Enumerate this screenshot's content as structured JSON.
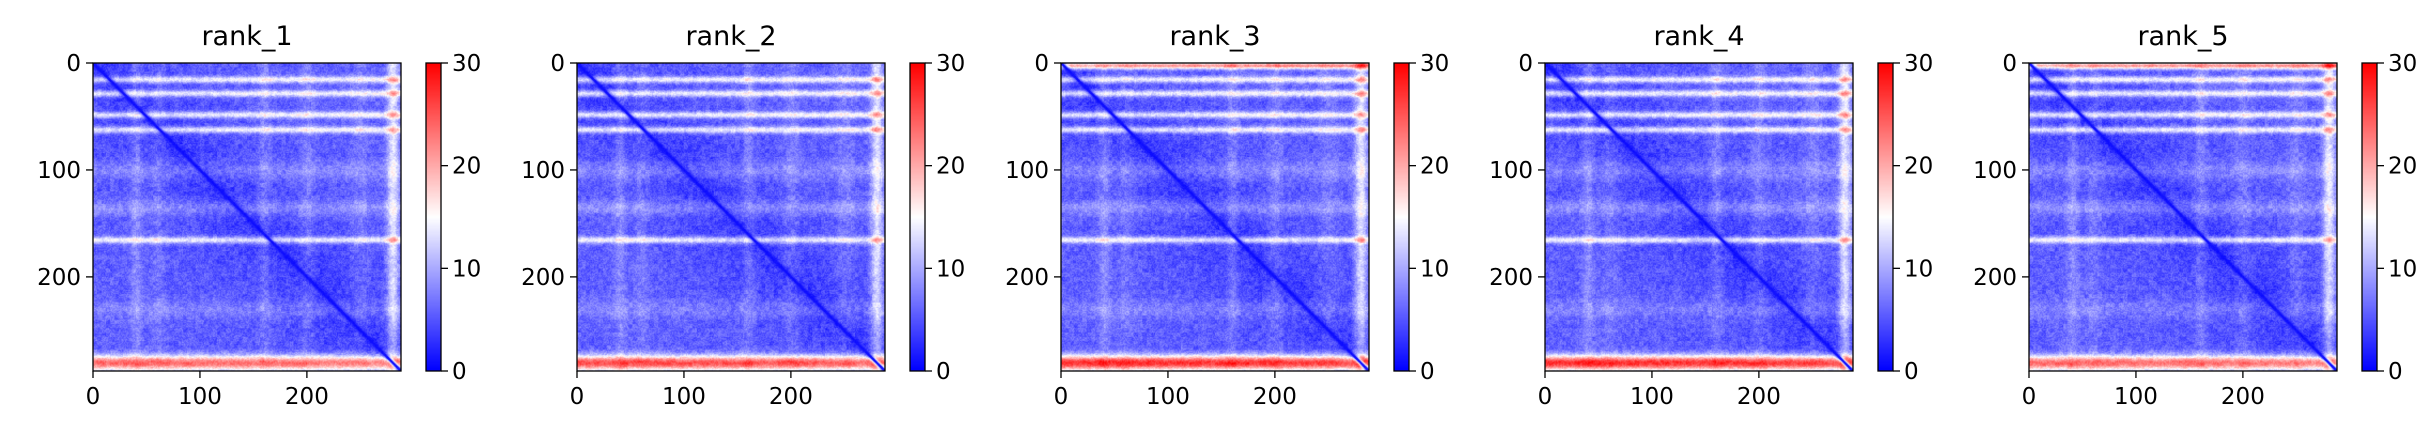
{
  "chart_data": [
    {
      "type": "heatmap",
      "title": "rank_1",
      "xlabel": "",
      "ylabel": "",
      "xlim": [
        0,
        288
      ],
      "ylim": [
        288,
        0
      ],
      "x_ticks": [
        "0",
        "100",
        "200"
      ],
      "y_ticks": [
        "0",
        "100",
        "200"
      ],
      "colorbar": {
        "min": 0,
        "max": 30,
        "ticks": [
          "0",
          "10",
          "20",
          "30"
        ],
        "colormap": "bwr"
      },
      "structure": {
        "size": 288,
        "high_error_bands": [
          15,
          28,
          48,
          62,
          165,
          280
        ],
        "bottom_band_strength": 1.0,
        "right_edge_band": true
      }
    },
    {
      "type": "heatmap",
      "title": "rank_2",
      "xlabel": "",
      "ylabel": "",
      "xlim": [
        0,
        288
      ],
      "ylim": [
        288,
        0
      ],
      "x_ticks": [
        "0",
        "100",
        "200"
      ],
      "y_ticks": [
        "0",
        "100",
        "200"
      ],
      "colorbar": {
        "min": 0,
        "max": 30,
        "ticks": [
          "0",
          "10",
          "20",
          "30"
        ],
        "colormap": "bwr"
      },
      "structure": {
        "size": 288,
        "high_error_bands": [
          15,
          28,
          48,
          62,
          165,
          280
        ],
        "bottom_band_strength": 1.1,
        "right_edge_band": true
      }
    },
    {
      "type": "heatmap",
      "title": "rank_3",
      "xlabel": "",
      "ylabel": "",
      "xlim": [
        0,
        288
      ],
      "ylim": [
        288,
        0
      ],
      "x_ticks": [
        "0",
        "100",
        "200"
      ],
      "y_ticks": [
        "0",
        "100",
        "200"
      ],
      "colorbar": {
        "min": 0,
        "max": 30,
        "ticks": [
          "0",
          "10",
          "20",
          "30"
        ],
        "colormap": "bwr"
      },
      "structure": {
        "size": 288,
        "high_error_bands": [
          2,
          15,
          28,
          48,
          62,
          165,
          280
        ],
        "bottom_band_strength": 1.2,
        "right_edge_band": true
      }
    },
    {
      "type": "heatmap",
      "title": "rank_4",
      "xlabel": "",
      "ylabel": "",
      "xlim": [
        0,
        288
      ],
      "ylim": [
        288,
        0
      ],
      "x_ticks": [
        "0",
        "100",
        "200"
      ],
      "y_ticks": [
        "0",
        "100",
        "200"
      ],
      "colorbar": {
        "min": 0,
        "max": 30,
        "ticks": [
          "0",
          "10",
          "20",
          "30"
        ],
        "colormap": "bwr"
      },
      "structure": {
        "size": 288,
        "high_error_bands": [
          15,
          28,
          48,
          62,
          165,
          280
        ],
        "bottom_band_strength": 1.2,
        "right_edge_band": true
      }
    },
    {
      "type": "heatmap",
      "title": "rank_5",
      "xlabel": "",
      "ylabel": "",
      "xlim": [
        0,
        288
      ],
      "ylim": [
        288,
        0
      ],
      "x_ticks": [
        "0",
        "100",
        "200"
      ],
      "y_ticks": [
        "0",
        "100",
        "200"
      ],
      "colorbar": {
        "min": 0,
        "max": 30,
        "ticks": [
          "0",
          "10",
          "20",
          "30"
        ],
        "colormap": "bwr"
      },
      "structure": {
        "size": 288,
        "high_error_bands": [
          2,
          15,
          28,
          48,
          62,
          165,
          280
        ],
        "bottom_band_strength": 1.0,
        "right_edge_band": true
      }
    }
  ]
}
